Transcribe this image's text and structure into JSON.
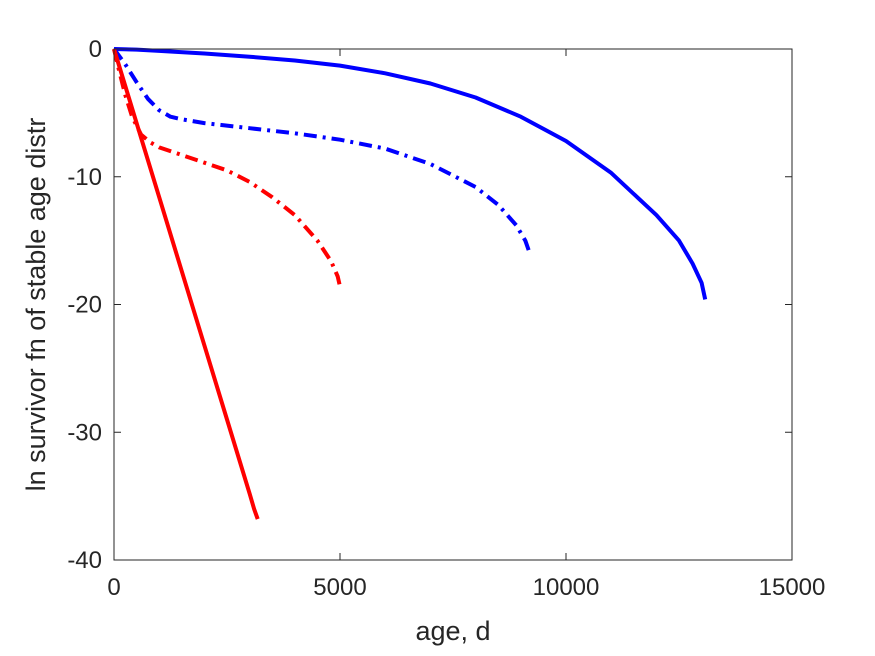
{
  "chart_data": {
    "type": "line",
    "title": "",
    "xlabel": "age, d",
    "ylabel": "ln survivor fn of stable age distr",
    "xlim": [
      0,
      15000
    ],
    "ylim": [
      -40,
      0
    ],
    "xticks": [
      0,
      5000,
      10000,
      15000
    ],
    "yticks": [
      -40,
      -30,
      -20,
      -10,
      0
    ],
    "xtick_labels": [
      "0",
      "5000",
      "10000",
      "15000"
    ],
    "ytick_labels": [
      "-40",
      "-30",
      "-20",
      "-10",
      "0"
    ],
    "grid": false,
    "legend": "none",
    "series": [
      {
        "color": "#0000ff",
        "style": "solid",
        "x": [
          0,
          500,
          1000,
          2000,
          3000,
          4000,
          5000,
          6000,
          7000,
          8000,
          9000,
          10000,
          11000,
          12000,
          12500,
          12800,
          13000,
          13080
        ],
        "y": [
          0,
          -0.05,
          -0.15,
          -0.35,
          -0.6,
          -0.9,
          -1.3,
          -1.9,
          -2.7,
          -3.8,
          -5.3,
          -7.2,
          -9.7,
          -13.0,
          -15.0,
          -16.8,
          -18.3,
          -19.6
        ]
      },
      {
        "color": "#0000ff",
        "style": "dashdot",
        "x": [
          0,
          250,
          500,
          750,
          1000,
          1250,
          1500,
          2000,
          3000,
          4000,
          5000,
          6000,
          7000,
          8000,
          8500,
          8900,
          9100,
          9200
        ],
        "y": [
          0,
          -1.2,
          -2.6,
          -3.9,
          -4.8,
          -5.3,
          -5.5,
          -5.8,
          -6.2,
          -6.6,
          -7.1,
          -7.8,
          -9.0,
          -10.8,
          -12.2,
          -13.8,
          -15.0,
          -16.0
        ]
      },
      {
        "color": "#ff0000",
        "style": "solid",
        "x": [
          0,
          500,
          1000,
          1500,
          2000,
          2500,
          3000,
          3100,
          3180
        ],
        "y": [
          0,
          -5.8,
          -11.6,
          -17.4,
          -23.2,
          -29.0,
          -34.8,
          -36.0,
          -36.8
        ]
      },
      {
        "color": "#ff0000",
        "style": "dashdot",
        "x": [
          0,
          100,
          250,
          400,
          600,
          800,
          1000,
          1500,
          2000,
          2500,
          3000,
          3500,
          4000,
          4500,
          4800,
          4950,
          5000
        ],
        "y": [
          0,
          -1.5,
          -3.6,
          -5.3,
          -6.7,
          -7.3,
          -7.7,
          -8.3,
          -8.9,
          -9.5,
          -10.4,
          -11.6,
          -13.0,
          -15.0,
          -16.6,
          -17.8,
          -18.6
        ]
      }
    ]
  }
}
